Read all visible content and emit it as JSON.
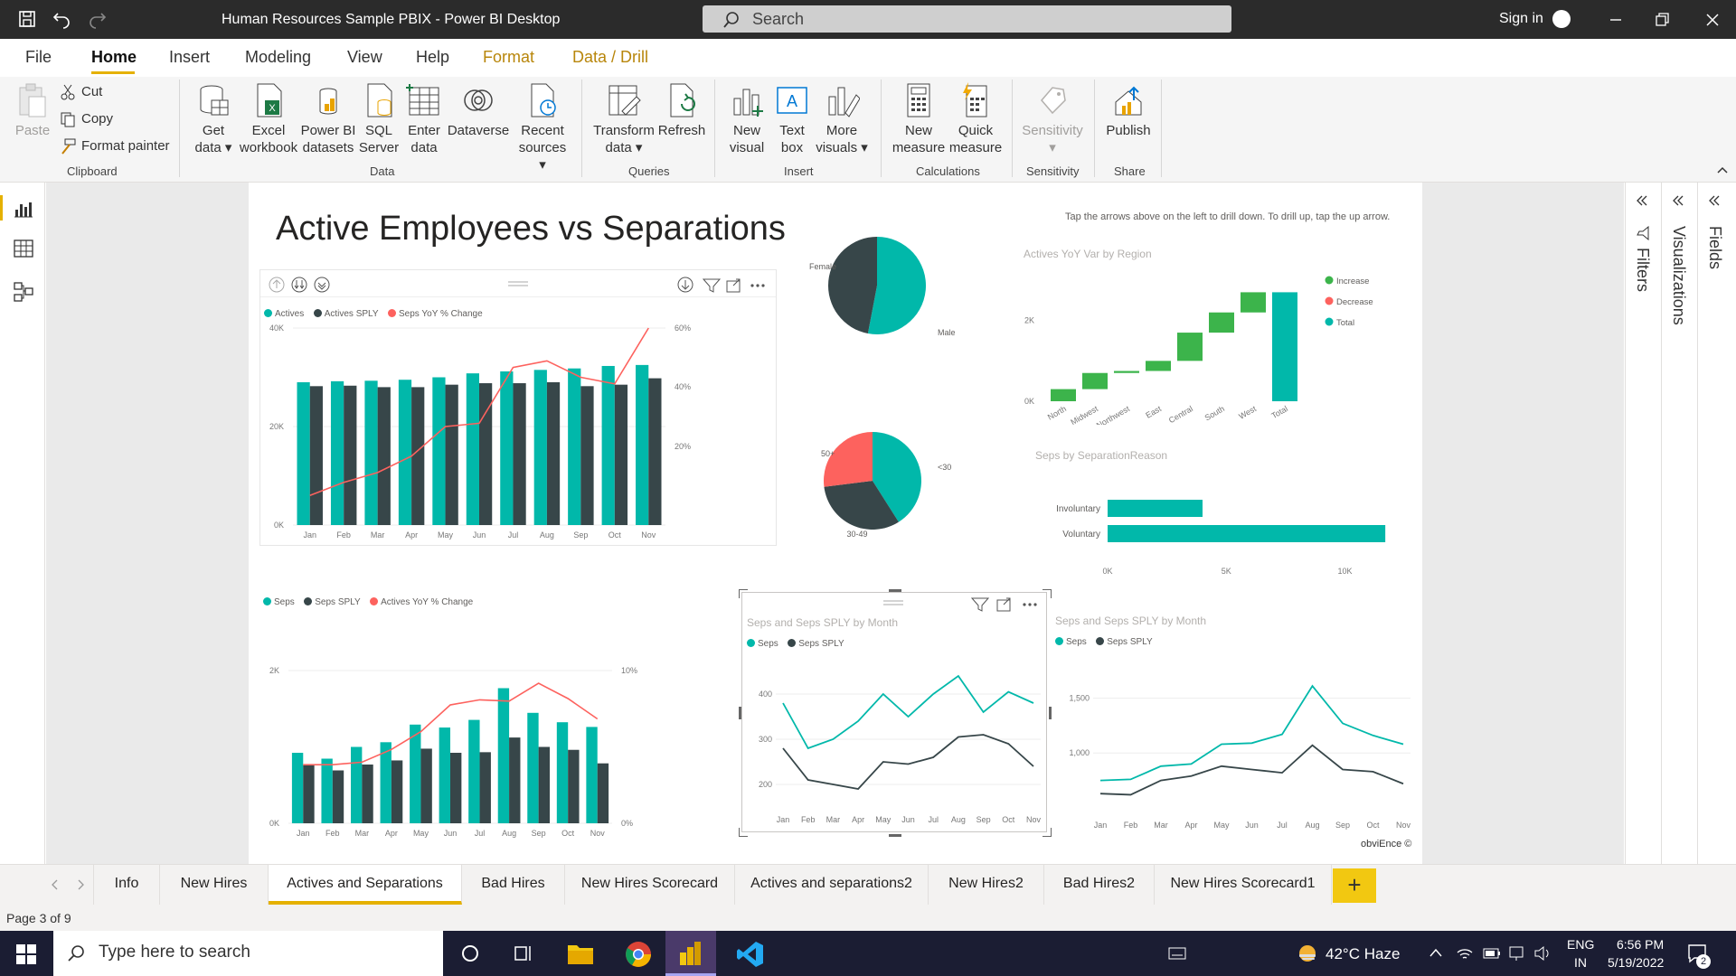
{
  "titlebar": {
    "title": "Human Resources Sample PBIX - Power BI Desktop",
    "search_placeholder": "Search",
    "sign_in": "Sign in"
  },
  "menu": {
    "file": "File",
    "home": "Home",
    "insert": "Insert",
    "modeling": "Modeling",
    "view": "View",
    "help": "Help",
    "format": "Format",
    "data_drill": "Data / Drill"
  },
  "ribbon": {
    "paste": "Paste",
    "cut": "Cut",
    "copy": "Copy",
    "format_painter": "Format painter",
    "clipboard": "Clipboard",
    "get_data": [
      "Get",
      "data"
    ],
    "excel": [
      "Excel",
      "workbook"
    ],
    "pbi_datasets": [
      "Power BI",
      "datasets"
    ],
    "sql": [
      "SQL",
      "Server"
    ],
    "enter_data": [
      "Enter",
      "data"
    ],
    "dataverse": "Dataverse",
    "recent_sources": [
      "Recent",
      "sources"
    ],
    "data": "Data",
    "transform": [
      "Transform",
      "data"
    ],
    "refresh": "Refresh",
    "queries": "Queries",
    "new_visual": [
      "New",
      "visual"
    ],
    "text_box": [
      "Text",
      "box"
    ],
    "more_visuals": [
      "More",
      "visuals"
    ],
    "insert": "Insert",
    "new_measure": [
      "New",
      "measure"
    ],
    "quick_measure": [
      "Quick",
      "measure"
    ],
    "calculations": "Calculations",
    "sensitivity_btn": "Sensitivity",
    "sensitivity": "Sensitivity",
    "publish": "Publish",
    "share": "Share"
  },
  "panes": {
    "filters": "Filters",
    "visualizations": "Visualizations",
    "fields": "Fields"
  },
  "report": {
    "heading": "Active Employees vs Separations",
    "note": "Tap the arrows above on the left to drill down. To drill up, tap the up arrow.",
    "brand": "obviEnce ©",
    "legend_actives": [
      "Actives",
      "Actives SPLY",
      "Seps YoY % Change"
    ],
    "legend_seps": [
      "Seps",
      "Seps SPLY",
      "Actives YoY % Change"
    ],
    "legend_seps2": [
      "Seps",
      "Seps SPLY"
    ],
    "title_region": "Actives YoY Var by Region",
    "title_reason": "Seps by SeparationReason",
    "title_month": "Seps and Seps SPLY by Month",
    "legend_waterfall": [
      "Increase",
      "Decrease",
      "Total"
    ]
  },
  "tabs": [
    "Info",
    "New Hires",
    "Actives and Separations",
    "Bad Hires",
    "New Hires Scorecard",
    "Actives and separations2",
    "New Hires2",
    "Bad Hires2",
    "New Hires Scorecard1"
  ],
  "status": {
    "page": "Page 3 of 9"
  },
  "taskbar": {
    "search": "Type here to search",
    "weather": "42°C  Haze",
    "lang1": "ENG",
    "lang2": "IN",
    "time": "6:56 PM",
    "date": "5/19/2022",
    "notif_count": "2"
  },
  "colors": {
    "teal": "#01b8aa",
    "dark": "#374649",
    "red": "#fd625e",
    "green": "#3cb44b",
    "yellow": "#f2c811"
  },
  "chart_data": [
    {
      "id": "actives",
      "type": "bar",
      "categories": [
        "Jan",
        "Feb",
        "Mar",
        "Apr",
        "May",
        "Jun",
        "Jul",
        "Aug",
        "Sep",
        "Oct",
        "Nov"
      ],
      "series": [
        {
          "name": "Actives",
          "values": [
            29000,
            29200,
            29300,
            29500,
            30000,
            30800,
            31200,
            31500,
            31800,
            32300,
            32500
          ]
        },
        {
          "name": "Actives SPLY",
          "values": [
            28200,
            28300,
            28000,
            28000,
            28500,
            28800,
            28800,
            29000,
            28200,
            28500,
            29800
          ]
        },
        {
          "name": "Seps YoY % Change",
          "axis": "right",
          "values": [
            9,
            13,
            16,
            21,
            30,
            31,
            48,
            50,
            45,
            43,
            60
          ]
        }
      ],
      "ylim": [
        0,
        40000
      ],
      "yticks": [
        "0K",
        "20K",
        "40K"
      ],
      "y2lim": [
        0,
        60
      ],
      "y2ticks": [
        "20%",
        "40%",
        "60%"
      ]
    },
    {
      "id": "seps",
      "type": "bar",
      "categories": [
        "Jan",
        "Feb",
        "Mar",
        "Apr",
        "May",
        "Jun",
        "Jul",
        "Aug",
        "Sep",
        "Oct",
        "Nov"
      ],
      "series": [
        {
          "name": "Seps",
          "values": [
            1200,
            1100,
            1300,
            1380,
            1680,
            1630,
            1760,
            2300,
            1880,
            1720,
            1640
          ]
        },
        {
          "name": "Seps SPLY",
          "values": [
            990,
            900,
            1000,
            1070,
            1270,
            1200,
            1210,
            1460,
            1300,
            1250,
            1020
          ]
        },
        {
          "name": "Actives YoY % Change",
          "axis": "right",
          "values": [
            4.6,
            4.6,
            4.8,
            5.8,
            7.2,
            9.3,
            9.7,
            9.6,
            11.0,
            9.8,
            8.2
          ]
        }
      ],
      "ylim": [
        0,
        2600
      ],
      "yticks": [
        "0K",
        "2K"
      ],
      "y2ticks": [
        "0%",
        "10%"
      ]
    },
    {
      "id": "gender",
      "type": "pie",
      "labels": [
        "Male",
        "Female"
      ],
      "values": [
        53,
        47
      ]
    },
    {
      "id": "age",
      "type": "pie",
      "labels": [
        "<30",
        "30-49",
        "50+"
      ],
      "values": [
        41,
        32,
        27
      ]
    },
    {
      "id": "region",
      "type": "waterfall",
      "title": "Actives YoY Var by Region",
      "categories": [
        "North",
        "Midwest",
        "Northwest",
        "East",
        "Central",
        "South",
        "West",
        "Total"
      ],
      "values": [
        300,
        400,
        50,
        250,
        700,
        500,
        500,
        2700
      ],
      "yticks": [
        "0K",
        "2K"
      ]
    },
    {
      "id": "reason",
      "type": "bar",
      "title": "Seps by SeparationReason",
      "categories": [
        "Involuntary",
        "Voluntary"
      ],
      "values": [
        4000,
        11700
      ],
      "xticks": [
        "0K",
        "5K",
        "10K"
      ]
    },
    {
      "id": "month_a",
      "type": "line",
      "title": "Seps and Seps SPLY by Month",
      "categories": [
        "Jan",
        "Feb",
        "Mar",
        "Apr",
        "May",
        "Jun",
        "Jul",
        "Aug",
        "Sep",
        "Oct",
        "Nov"
      ],
      "series": [
        {
          "name": "Seps",
          "values": [
            380,
            280,
            300,
            340,
            400,
            350,
            400,
            440,
            360,
            405,
            380
          ]
        },
        {
          "name": "Seps SPLY",
          "values": [
            280,
            210,
            200,
            190,
            250,
            245,
            260,
            305,
            310,
            290,
            240
          ]
        }
      ],
      "ylim": [
        160,
        460
      ],
      "yticks": [
        "200",
        "300",
        "400"
      ]
    },
    {
      "id": "month_b",
      "type": "line",
      "title": "Seps and Seps SPLY by Month",
      "categories": [
        "Jan",
        "Feb",
        "Mar",
        "Apr",
        "May",
        "Jun",
        "Jul",
        "Aug",
        "Sep",
        "Oct",
        "Nov"
      ],
      "series": [
        {
          "name": "Seps",
          "values": [
            750,
            760,
            880,
            900,
            1080,
            1090,
            1170,
            1610,
            1270,
            1160,
            1080
          ]
        },
        {
          "name": "Seps SPLY",
          "values": [
            630,
            620,
            750,
            790,
            880,
            850,
            820,
            1070,
            850,
            830,
            720
          ]
        }
      ],
      "ylim": [
        500,
        1800
      ],
      "yticks": [
        "1,000",
        "1,500"
      ]
    }
  ]
}
